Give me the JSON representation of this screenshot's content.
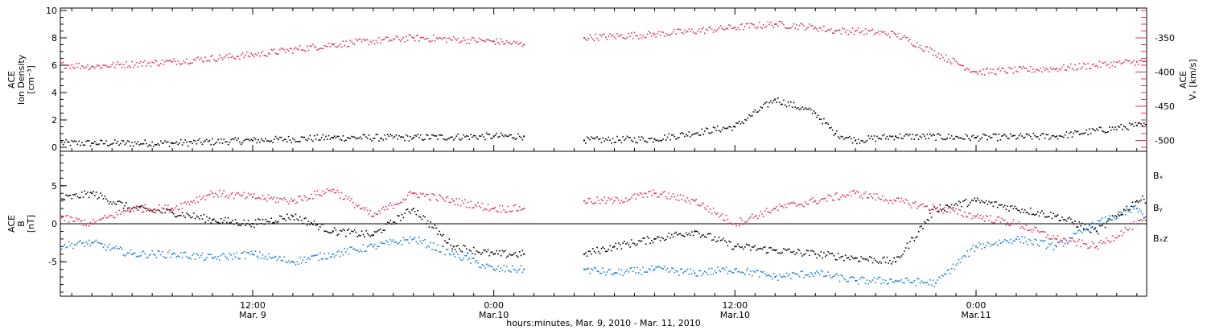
{
  "colors": {
    "black": "#000000",
    "red": "#e0305a",
    "blue": "#1a7fd4"
  },
  "chart_data": [
    {
      "type": "scatter",
      "panel": "top",
      "left_axis_label": [
        "ACE",
        "Ion Density",
        "[cm⁻³]"
      ],
      "right_axis_label": [
        "ACE",
        "Vₓ [km/s]"
      ],
      "yticks_left": [
        "0",
        "2",
        "4",
        "6",
        "8",
        "10"
      ],
      "yticks_right": [
        "-350",
        "-400",
        "-450",
        "-500"
      ],
      "ylim_left": [
        0,
        10
      ],
      "ylim_right": [
        -510,
        -310
      ],
      "x_range_hours": [
        0,
        80
      ],
      "data_gaps_hours": [
        [
          25.5,
          28.5
        ]
      ],
      "series": [
        {
          "axis": "left",
          "color": "#000000",
          "x": [
            0,
            4,
            8,
            12,
            16,
            20,
            24,
            25.5,
            28.5,
            32,
            36,
            38,
            40,
            41,
            42,
            44,
            48,
            52,
            56,
            60,
            64,
            66,
            68,
            70,
            72,
            74,
            76,
            78,
            80,
            84,
            86,
            88,
            90,
            92
          ],
          "y": [
            0.3,
            0.3,
            0.3,
            0.5,
            0.7,
            0.7,
            0.8,
            0.8,
            0.5,
            0.6,
            1.5,
            3.5,
            2.5,
            1.0,
            0.5,
            0.8,
            0.7,
            0.8,
            1.6,
            1.3,
            1.5,
            1.3,
            3.9,
            3.6,
            3.5,
            2.5,
            3.2,
            3.2,
            2.5,
            2.4,
            1.7,
            0.9,
            0.5,
            0.4
          ]
        },
        {
          "axis": "right",
          "color": "#e0305a",
          "x": [
            0,
            4,
            8,
            12,
            16,
            20,
            24,
            25.5,
            28.5,
            32,
            36,
            38,
            40,
            41,
            42,
            44,
            48,
            52,
            56,
            60,
            64,
            66,
            68,
            70,
            72,
            74,
            76,
            78,
            80,
            84,
            86,
            88,
            90,
            92
          ],
          "y": [
            -385,
            -392,
            -385,
            -375,
            -360,
            -350,
            -355,
            -360,
            -350,
            -345,
            -335,
            -330,
            -335,
            -340,
            -340,
            -345,
            -400,
            -395,
            -385,
            -395,
            -405,
            -400,
            -395,
            -405,
            -405,
            -395,
            -410,
            -425,
            -410,
            -435,
            -440,
            -455,
            -470,
            -480
          ]
        }
      ]
    },
    {
      "type": "scatter",
      "panel": "bottom",
      "left_axis_label": [
        "ACE",
        "B",
        "[nT]"
      ],
      "yticks_left": [
        "5",
        "0",
        "-5"
      ],
      "ylim_left": [
        -9,
        9
      ],
      "x_range_hours": [
        0,
        80
      ],
      "data_gaps_hours": [
        [
          25.5,
          28.5
        ]
      ],
      "xticks": [
        {
          "time": "12:00",
          "date": "Mar. 9"
        },
        {
          "time": "0:00",
          "date": "Mar.10"
        },
        {
          "time": "12:00",
          "date": "Mar.10"
        },
        {
          "time": "0:00",
          "date": "Mar.11"
        }
      ],
      "xtick_hours": [
        12,
        24,
        36,
        48
      ],
      "xlabel": "hours:minutes, Mar.  9, 2010 - Mar. 11, 2010",
      "legend": [
        {
          "name": "Bₓ",
          "color": "#000000"
        },
        {
          "name": "Bᵧ",
          "color": "#1a7fd4"
        },
        {
          "name": "Bₓz",
          "color": "#e0305a"
        }
      ],
      "series": [
        {
          "name": "Bx",
          "color": "#000000",
          "x": [
            0,
            2,
            4,
            6,
            8,
            10,
            12,
            14,
            16,
            18,
            20,
            22,
            24,
            25.5,
            28.5,
            30,
            32,
            34,
            36,
            38,
            40,
            42,
            44,
            46,
            48,
            50,
            52,
            54,
            56,
            58,
            60,
            62,
            64,
            66,
            68,
            70,
            72,
            74,
            76,
            78,
            80,
            82,
            84,
            86,
            88,
            90,
            92
          ],
          "y": [
            3.5,
            3,
            4,
            2,
            1.5,
            0.5,
            0,
            1,
            -1,
            -1.5,
            2,
            -3,
            -4,
            -4,
            -4,
            -3,
            -2,
            -1,
            -3,
            -3.5,
            -4,
            -4.5,
            -5,
            2,
            3,
            2,
            1,
            -1,
            3,
            4,
            4.5,
            3,
            2,
            5,
            6,
            4,
            3,
            2,
            3,
            0,
            3,
            4,
            3,
            5,
            6,
            5,
            3
          ]
        },
        {
          "name": "By",
          "color": "#1a7fd4",
          "x": [
            0,
            2,
            4,
            6,
            8,
            10,
            12,
            14,
            16,
            18,
            20,
            22,
            24,
            25.5,
            28.5,
            30,
            32,
            34,
            36,
            38,
            40,
            42,
            44,
            46,
            48,
            50,
            52,
            54,
            56,
            58,
            60,
            62,
            64,
            66,
            68,
            70,
            72,
            74,
            76,
            78,
            80,
            82,
            84,
            86,
            88,
            90,
            92
          ],
          "y": [
            -3,
            -3,
            -2.5,
            -4,
            -4,
            -4.5,
            -4,
            -5,
            -4,
            -3,
            -2,
            -4,
            -6,
            -6,
            -6,
            -6.5,
            -6,
            -6.5,
            -6,
            -7,
            -6.5,
            -7.5,
            -7.5,
            -7.8,
            -3,
            -2,
            -3,
            0,
            2,
            -3,
            -1,
            5,
            -3,
            -2,
            -4,
            -3,
            -5,
            -4,
            -1,
            -7,
            -5,
            -3,
            -5,
            -4,
            -3,
            -2,
            -3
          ]
        },
        {
          "name": "Bz",
          "color": "#e0305a",
          "x": [
            0,
            2,
            4,
            6,
            8,
            10,
            12,
            14,
            16,
            18,
            20,
            22,
            24,
            25.5,
            28.5,
            30,
            32,
            34,
            36,
            38,
            40,
            42,
            44,
            46,
            48,
            50,
            52,
            54,
            56,
            58,
            60,
            62,
            64,
            66,
            68,
            70,
            72,
            74,
            76,
            78,
            80,
            82,
            84,
            86,
            88,
            90,
            92
          ],
          "y": [
            2,
            1,
            0,
            2,
            2,
            4,
            3.5,
            3,
            4.5,
            1,
            4,
            3,
            2,
            2,
            3,
            3,
            4,
            3,
            0,
            2,
            3,
            4,
            3,
            2,
            1,
            0,
            -2,
            -3,
            0,
            2,
            -1,
            -2,
            -3,
            -5,
            -6,
            -4,
            -3,
            -4,
            -2,
            -3,
            -4,
            -5,
            -4,
            -3,
            -4,
            -3,
            -2
          ]
        }
      ]
    }
  ]
}
